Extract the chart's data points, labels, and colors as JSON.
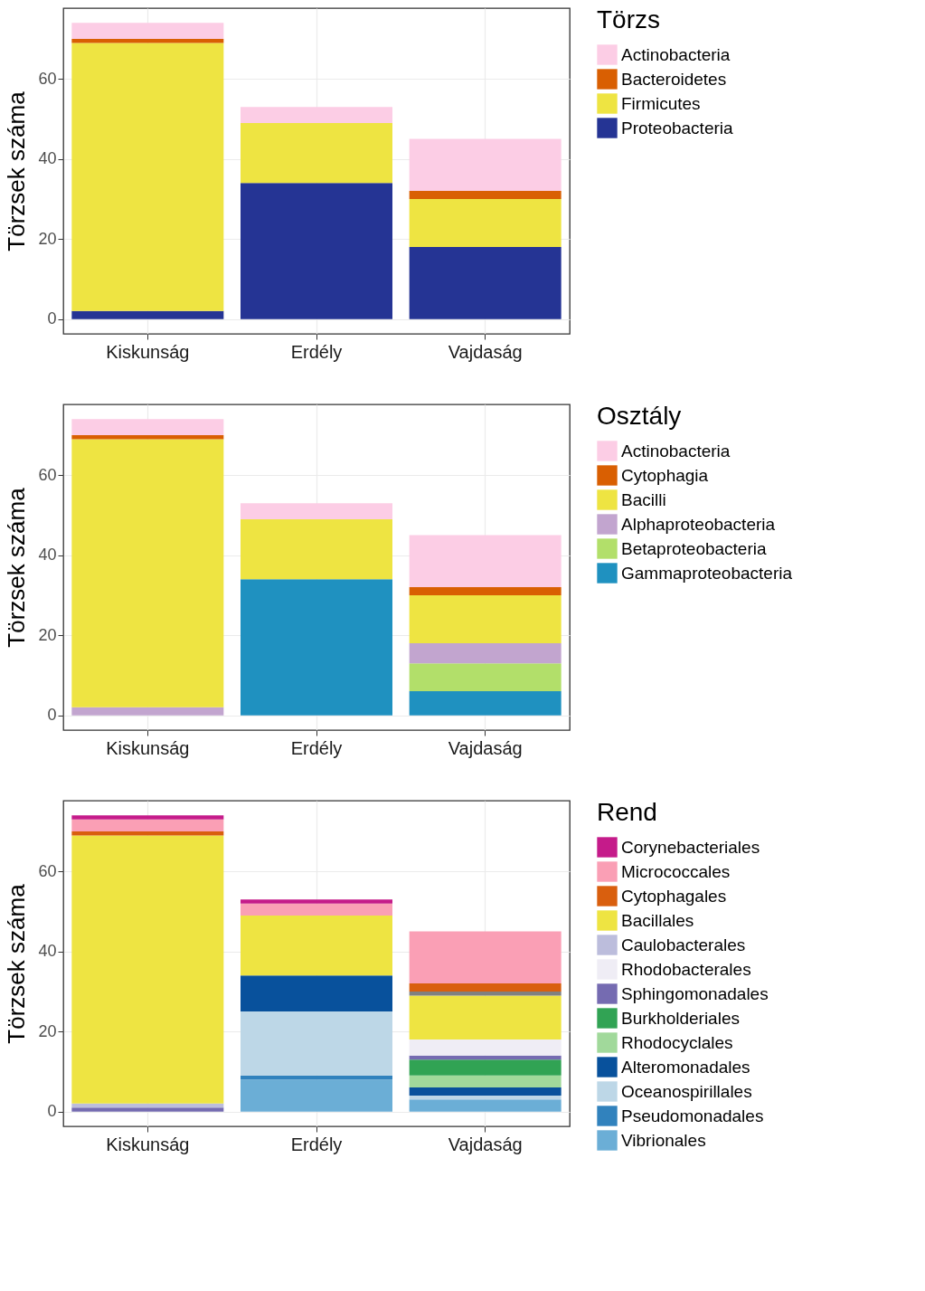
{
  "chart_data": [
    {
      "type": "bar",
      "stacked": true,
      "ylabel": "Törzsek száma",
      "legend_title": "Törzs",
      "legend": "right",
      "grid": true,
      "categories": [
        "Kiskunság",
        "Erdély",
        "Vajdaság"
      ],
      "ylim": [
        -3.7,
        77.7
      ],
      "yticks": [
        0,
        20,
        40,
        60
      ],
      "series": [
        {
          "name": "Proteobacteria",
          "color": "#253494",
          "values": [
            2,
            34,
            18
          ]
        },
        {
          "name": "Firmicutes",
          "color": "#eee442",
          "values": [
            67,
            15,
            12
          ]
        },
        {
          "name": "Bacteroidetes",
          "color": "#d95f02",
          "values": [
            1,
            0,
            2
          ]
        },
        {
          "name": "Actinobacteria",
          "color": "#fccde5",
          "values": [
            4,
            4,
            13
          ]
        }
      ]
    },
    {
      "type": "bar",
      "stacked": true,
      "ylabel": "Törzsek száma",
      "legend_title": "Osztály",
      "legend": "right",
      "grid": true,
      "categories": [
        "Kiskunság",
        "Erdély",
        "Vajdaság"
      ],
      "ylim": [
        -3.7,
        77.7
      ],
      "yticks": [
        0,
        20,
        40,
        60
      ],
      "series": [
        {
          "name": "Gammaproteobacteria",
          "color": "#1f91c0",
          "values": [
            0,
            34,
            6
          ]
        },
        {
          "name": "Betaproteobacteria",
          "color": "#b2df6a",
          "values": [
            0,
            0,
            7
          ]
        },
        {
          "name": "Alphaproteobacteria",
          "color": "#c2a5cf",
          "values": [
            2,
            0,
            5
          ]
        },
        {
          "name": "Bacilli",
          "color": "#eee442",
          "values": [
            67,
            15,
            12
          ]
        },
        {
          "name": "Cytophagia",
          "color": "#d95f02",
          "values": [
            1,
            0,
            2
          ]
        },
        {
          "name": "Actinobacteria",
          "color": "#fccde5",
          "values": [
            4,
            4,
            13
          ]
        }
      ]
    },
    {
      "type": "bar",
      "stacked": true,
      "ylabel": "Törzsek száma",
      "legend_title": "Rend",
      "legend": "right",
      "grid": true,
      "categories": [
        "Kiskunság",
        "Erdély",
        "Vajdaság"
      ],
      "ylim": [
        -3.7,
        77.7
      ],
      "yticks": [
        0,
        20,
        40,
        60
      ],
      "series": [
        {
          "name": "Vibrionales",
          "color": "#6baed6",
          "values": [
            0,
            8,
            3
          ]
        },
        {
          "name": "Pseudomonadales",
          "color": "#3182bd",
          "values": [
            0,
            1,
            0
          ]
        },
        {
          "name": "Oceanospirillales",
          "color": "#bdd7e7",
          "values": [
            0,
            16,
            1
          ]
        },
        {
          "name": "Alteromonadales",
          "color": "#08519c",
          "values": [
            0,
            9,
            2
          ]
        },
        {
          "name": "Rhodocyclales",
          "color": "#a1d99b",
          "values": [
            0,
            0,
            3
          ]
        },
        {
          "name": "Burkholderiales",
          "color": "#31a354",
          "values": [
            0,
            0,
            4
          ]
        },
        {
          "name": "Sphingomonadales",
          "color": "#756bb1",
          "values": [
            1,
            0,
            1
          ]
        },
        {
          "name": "Rhodobacterales",
          "color": "#efedf5",
          "values": [
            0,
            0,
            4
          ]
        },
        {
          "name": "Caulobacterales",
          "color": "#bcbddc",
          "values": [
            1,
            0,
            0
          ]
        },
        {
          "name": "Bacillales",
          "color": "#eee442",
          "values": [
            67,
            15,
            11
          ]
        },
        {
          "color": "#808080",
          "values": [
            0,
            0,
            1
          ]
        },
        {
          "name": "Cytophagales",
          "color": "#d95f0e",
          "values": [
            1,
            0,
            2
          ]
        },
        {
          "name": "Micrococcales",
          "color": "#fa9fb5",
          "values": [
            3,
            3,
            13
          ]
        },
        {
          "name": "Corynebacteriales",
          "color": "#c51b8a",
          "values": [
            1,
            1,
            0
          ]
        }
      ]
    }
  ]
}
